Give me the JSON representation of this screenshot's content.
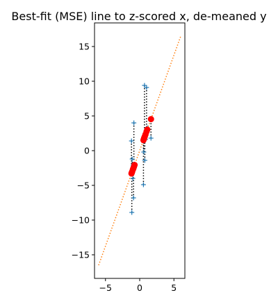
{
  "chart_data": {
    "type": "scatter",
    "title": "Best-fit (MSE) line to z-scored x, de-meaned y",
    "xlabel": "",
    "ylabel": "",
    "xlim": [
      -6.6,
      6.6
    ],
    "ylim": [
      -18.4,
      18.4
    ],
    "xticks": [
      -5,
      0,
      5
    ],
    "xtick_labels": [
      "−5",
      "0",
      "5"
    ],
    "yticks": [
      -15,
      -10,
      -5,
      0,
      5,
      10,
      15
    ],
    "ytick_labels": [
      "−15",
      "−10",
      "−5",
      "0",
      "5",
      "10",
      "15"
    ],
    "grid": false,
    "legend": "none",
    "fit_line": {
      "slope": 2.75,
      "intercept": 0,
      "x_range": [
        -6.0,
        6.0
      ],
      "color": "#ff7f0e",
      "style": "dotted"
    },
    "series": [
      {
        "kind": "observed",
        "marker": "plus",
        "color": "#1f77b4",
        "x": [
          -1.15,
          -1.2,
          -1.1,
          -1.0,
          -0.95,
          -0.9,
          -0.85,
          -0.75,
          0.55,
          0.6,
          0.65,
          0.7,
          0.75,
          0.85,
          1.0,
          1.1,
          1.65
        ],
        "y": [
          -8.9,
          1.4,
          -1.2,
          -4.0,
          -2.1,
          -6.8,
          4.0,
          -2.4,
          -4.9,
          -0.2,
          1.5,
          9.4,
          -1.4,
          1.6,
          9.1,
          3.3,
          1.8
        ]
      },
      {
        "kind": "predicted",
        "marker": "circle",
        "color": "#ff0000",
        "x": [
          -1.15,
          -1.2,
          -1.1,
          -1.0,
          -0.95,
          -0.9,
          -0.85,
          -0.75,
          0.55,
          0.6,
          0.65,
          0.7,
          0.75,
          0.85,
          1.0,
          1.1,
          1.65
        ],
        "y": [
          -3.16,
          -3.3,
          -3.03,
          -2.75,
          -2.61,
          -2.48,
          -2.34,
          -2.06,
          1.51,
          1.65,
          1.79,
          1.93,
          2.06,
          2.34,
          2.75,
          3.03,
          4.54
        ]
      }
    ],
    "residuals": {
      "style": "dotted",
      "color": "#000000"
    }
  }
}
